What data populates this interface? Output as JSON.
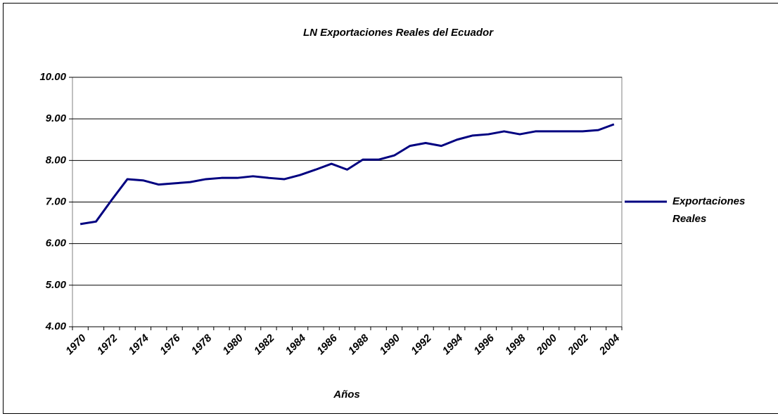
{
  "chart_data": {
    "type": "line",
    "title": "LN Exportaciones Reales del Ecuador",
    "x_label": "Años",
    "categories": [
      "1970",
      null,
      "1972",
      null,
      "1974",
      null,
      "1976",
      null,
      "1978",
      null,
      "1980",
      null,
      "1982",
      null,
      "1984",
      null,
      "1986",
      null,
      "1988",
      null,
      "1990",
      null,
      "1992",
      null,
      "1994",
      null,
      "1996",
      null,
      "1998",
      null,
      "2000",
      null,
      "2002",
      null,
      "2004"
    ],
    "series": [
      {
        "name": "Exportaciones Reales",
        "color": "#000080",
        "values": [
          6.47,
          6.53,
          7.05,
          7.55,
          7.52,
          7.42,
          7.45,
          7.48,
          7.55,
          7.58,
          7.58,
          7.62,
          7.58,
          7.55,
          7.65,
          7.78,
          7.92,
          7.78,
          8.02,
          8.02,
          8.12,
          8.35,
          8.42,
          8.35,
          8.5,
          8.6,
          8.63,
          8.7,
          8.63,
          8.7,
          8.7,
          8.7,
          8.7,
          8.73,
          8.87
        ]
      }
    ],
    "ylim": [
      4,
      10
    ],
    "yticks": [
      {
        "value": 4,
        "label": "4.00"
      },
      {
        "value": 5,
        "label": "5.00"
      },
      {
        "value": 6,
        "label": "6.00"
      },
      {
        "value": 7,
        "label": "7.00"
      },
      {
        "value": 8,
        "label": "8.00"
      },
      {
        "value": 9,
        "label": "9.00"
      },
      {
        "value": 10,
        "label": "10.00"
      }
    ],
    "grid": true,
    "legend": "right"
  }
}
